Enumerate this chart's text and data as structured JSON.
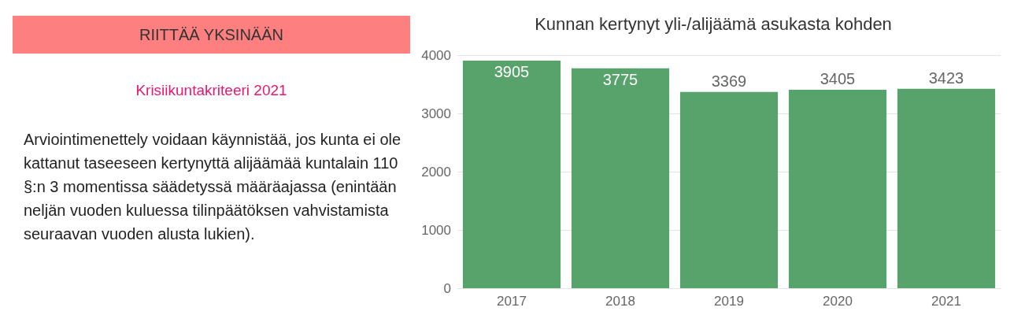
{
  "chart_data": [
    {
      "type": "other",
      "title": "RIITTÄÄ YKSINÄÄN",
      "subtitle": "Krisiikuntakriteeri 2021",
      "annotations": [
        "Arviointimenettely voidaan käynnistää, jos kunta ei ole kattanut taseeseen kertynyttä alijäämää kuntalain 110 §:n 3 momentissa säädetyssä määräajassa (enintään neljän vuoden kuluessa tilinpäätöksen vahvistamista seuraavan vuoden alusta lukien)."
      ]
    },
    {
      "type": "bar",
      "title": "Kunnan kertynyt yli-/alijäämä asukasta kohden",
      "categories": [
        "2017",
        "2018",
        "2019",
        "2020",
        "2021"
      ],
      "values": [
        3905,
        3775,
        3369,
        3405,
        3423
      ],
      "color": "#58a26b",
      "ylim": [
        0,
        4000
      ],
      "yticks": [
        0,
        1000,
        2000,
        3000,
        4000
      ],
      "grid": "y",
      "data_labels": true
    }
  ]
}
